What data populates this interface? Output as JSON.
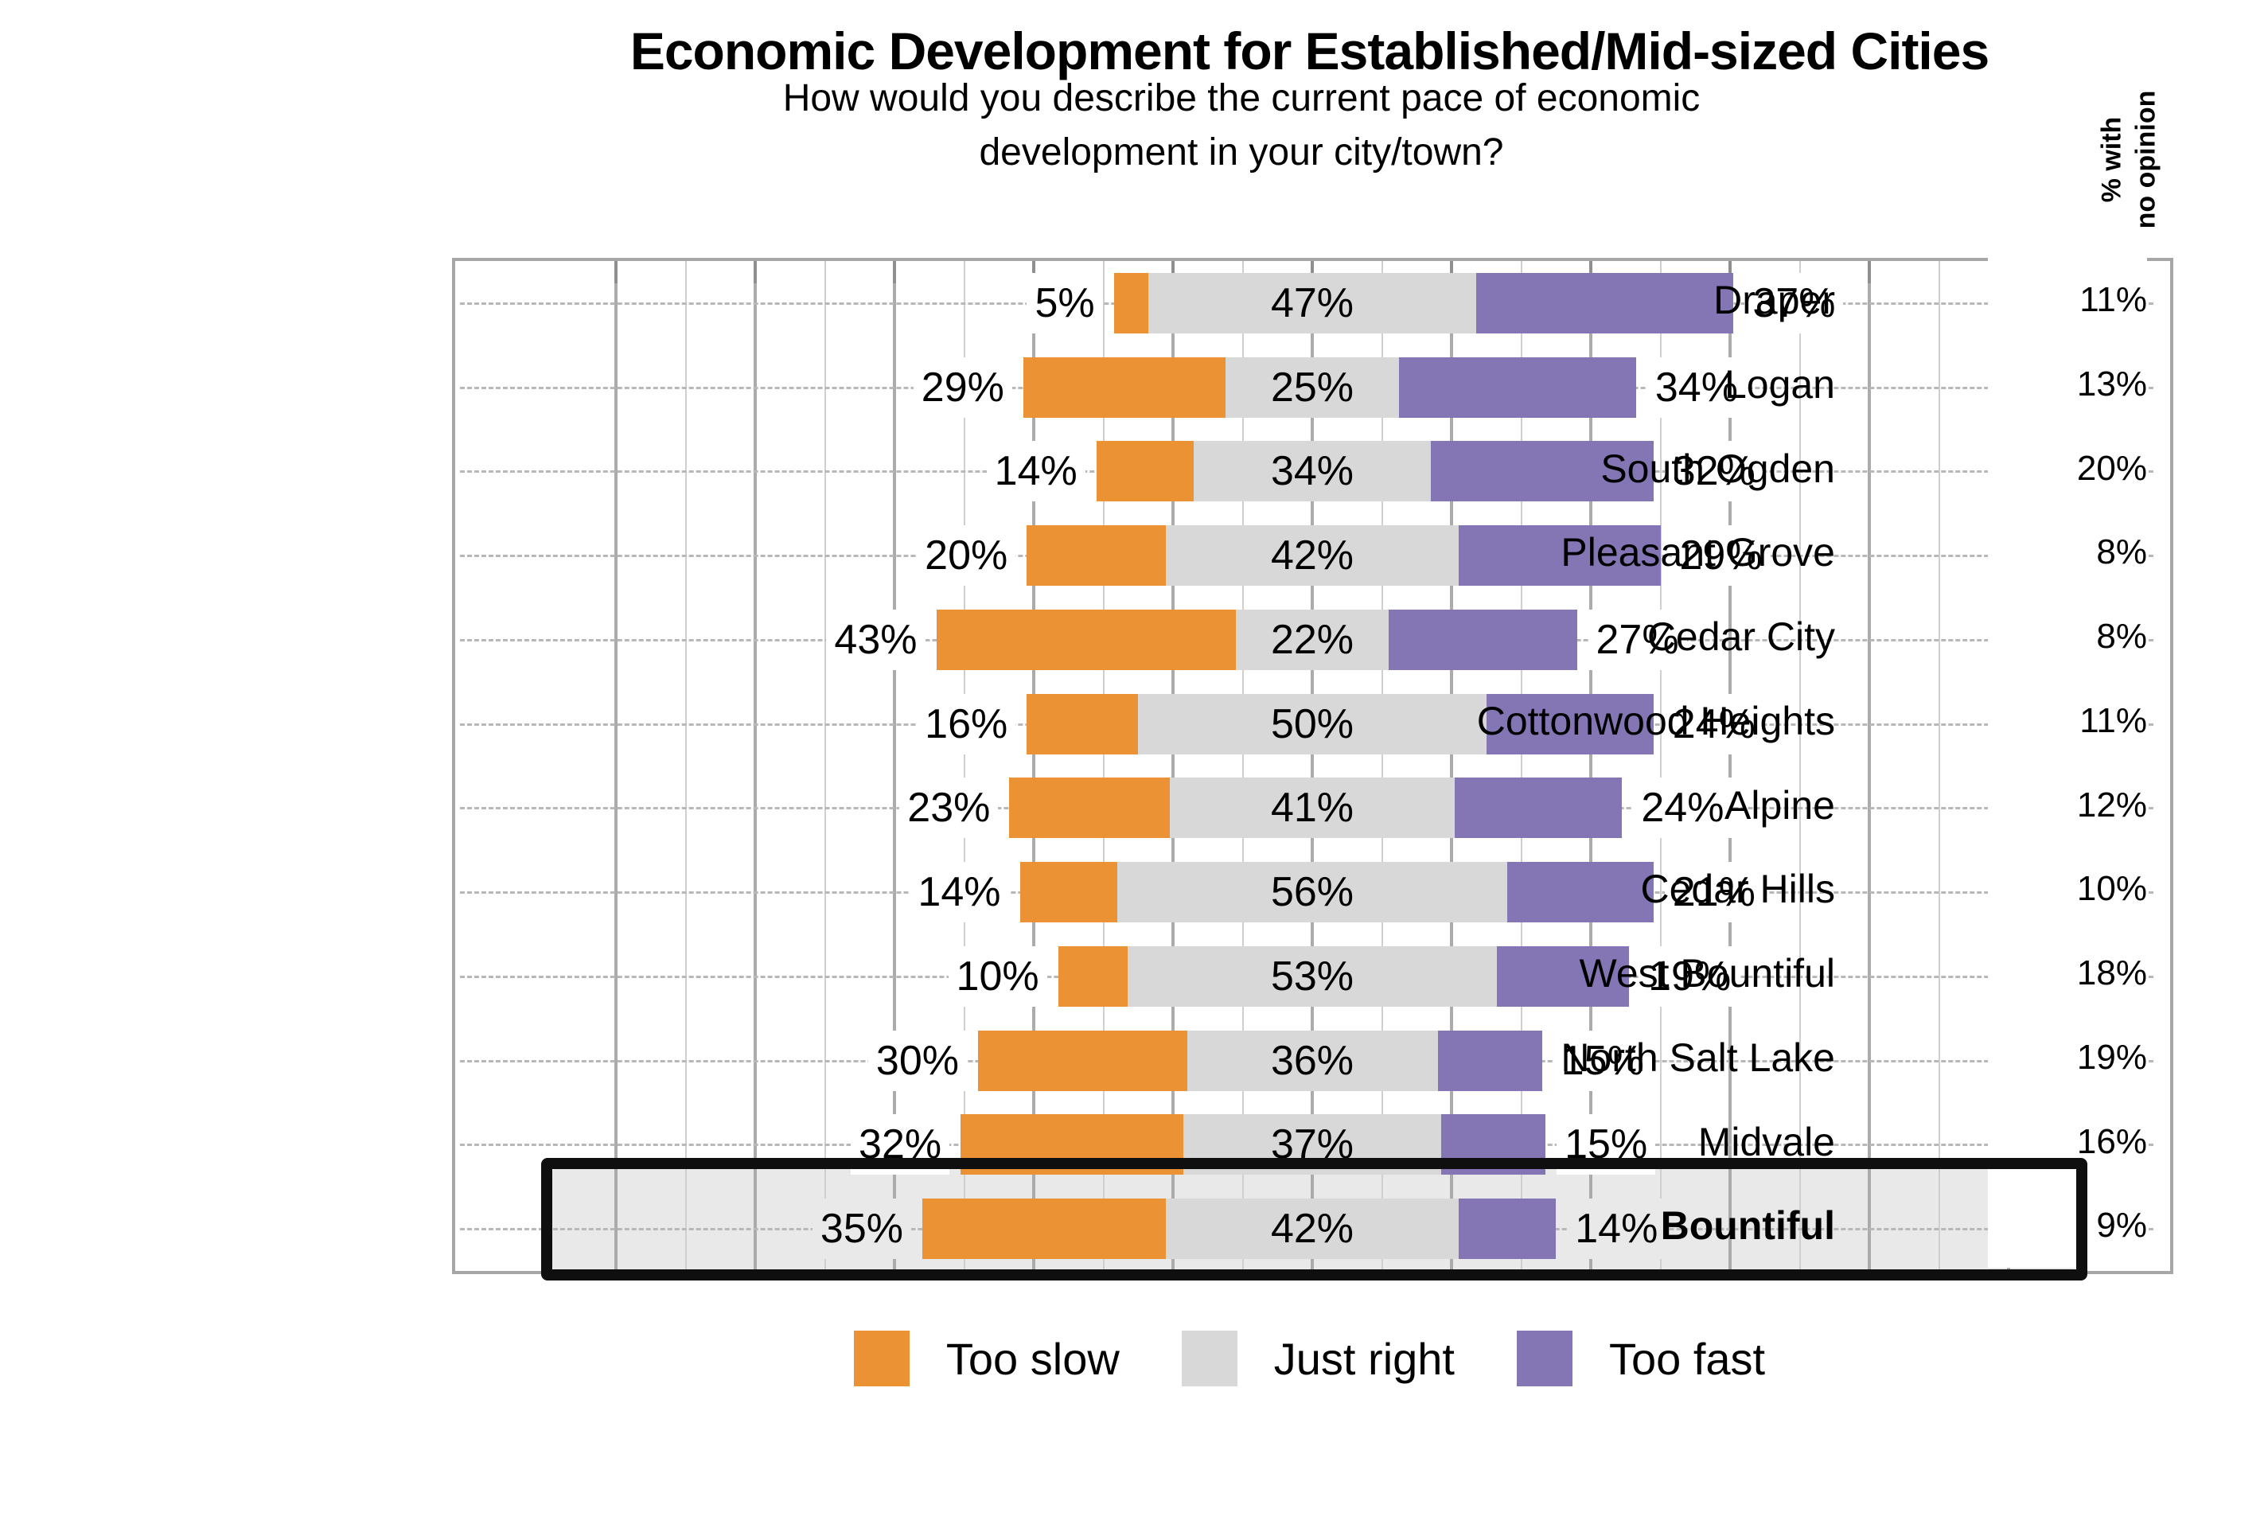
{
  "title": "Economic Development for Established/Mid-sized Cities",
  "subtitle_line1": "How would you describe the current pace of economic",
  "subtitle_line2": "development in your city/town?",
  "right_axis_note_line1": "% with",
  "right_axis_note_line2": "no opinion",
  "legend": [
    {
      "label": "Too slow",
      "color": "#EA9234"
    },
    {
      "label": "Just right",
      "color": "#D8D8D8"
    },
    {
      "label": "Too fast",
      "color": "#8476B5"
    }
  ],
  "colors": {
    "too_slow": "#EA9234",
    "just_right": "#D8D8D8",
    "too_fast": "#8476B5",
    "plot_border": "#a6a6a6",
    "major_grid": "#ababab",
    "minor_grid": "#cfcfcf",
    "dashed_leader": "#b8b8b8",
    "highlight_box_bg": "#e9e9e9",
    "highlight_box_border": "#0f0f0f"
  },
  "chart_data": {
    "type": "bar",
    "subtype": "horizontal-diverging-stacked",
    "title": "Economic Development for Established/Mid-sized Cities",
    "subtitle": "How would you describe the current pace of economic development in your city/town?",
    "categories": [
      "Draper",
      "Logan",
      "South Ogden",
      "Pleasant Grove",
      "Cedar City",
      "Cottonwood Heights",
      "Alpine",
      "Cedar Hills",
      "West Bountiful",
      "North Salt Lake",
      "Midvale",
      "Bountiful"
    ],
    "series": [
      {
        "name": "Too slow",
        "color": "#EA9234",
        "values": [
          5,
          29,
          14,
          20,
          43,
          16,
          23,
          14,
          10,
          30,
          32,
          35
        ]
      },
      {
        "name": "Just right",
        "color": "#D8D8D8",
        "values": [
          47,
          25,
          34,
          42,
          22,
          50,
          41,
          56,
          53,
          36,
          37,
          42
        ]
      },
      {
        "name": "Too fast",
        "color": "#8476B5",
        "values": [
          37,
          34,
          32,
          29,
          27,
          24,
          24,
          21,
          19,
          15,
          15,
          14
        ]
      }
    ],
    "no_opinion_column": {
      "header": "% with no opinion",
      "values": [
        11,
        13,
        20,
        8,
        8,
        11,
        12,
        10,
        18,
        19,
        16,
        9
      ]
    },
    "highlighted_category": "Bountiful",
    "value_suffix": "%",
    "layout_hints": {
      "just_right_centered_on_zero": true,
      "major_gridline_step_pct": 20,
      "minor_gridline_step_pct": 10,
      "gridline_range_pct": [
        -100,
        100
      ],
      "legend_position": "bottom",
      "grid": true
    }
  }
}
